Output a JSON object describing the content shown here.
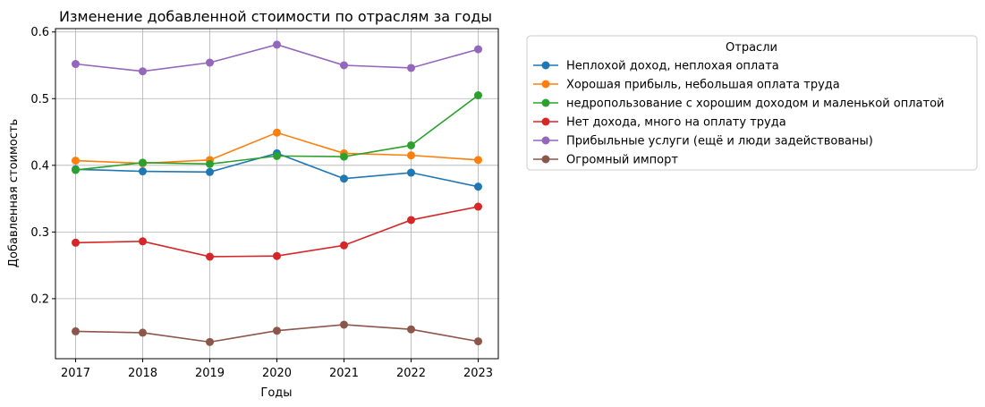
{
  "chart_data": {
    "type": "line",
    "title": "Изменение добавленной стоимости по отраслям за годы",
    "xlabel": "Годы",
    "ylabel": "Добавленная стоимость",
    "x": [
      2017,
      2018,
      2019,
      2020,
      2021,
      2022,
      2023
    ],
    "xlim": [
      2016.7,
      2023.3
    ],
    "ylim": [
      0.11,
      0.605
    ],
    "yticks": [
      0.2,
      0.3,
      0.4,
      0.5,
      0.6
    ],
    "ytick_labels": [
      "0.2",
      "0.3",
      "0.4",
      "0.5",
      "0.6"
    ],
    "xtick_labels": [
      "2017",
      "2018",
      "2019",
      "2020",
      "2021",
      "2022",
      "2023"
    ],
    "grid": true,
    "legend": {
      "title": "Отрасли",
      "placement": "outside-right-top"
    },
    "series": [
      {
        "name": "Неплохой доход, неплохая оплата",
        "color": "#1f77b4",
        "values": [
          0.394,
          0.391,
          0.39,
          0.418,
          0.38,
          0.389,
          0.368
        ]
      },
      {
        "name": "Хорошая прибыль, небольшая оплата труда",
        "color": "#ff7f0e",
        "values": [
          0.407,
          0.403,
          0.408,
          0.449,
          0.418,
          0.415,
          0.408
        ]
      },
      {
        "name": "недропользование с хорошим доходом и маленькой оплатой",
        "color": "#2ca02c",
        "values": [
          0.393,
          0.404,
          0.402,
          0.414,
          0.413,
          0.43,
          0.505
        ]
      },
      {
        "name": "Нет дохода, много на оплату труда",
        "color": "#d62728",
        "values": [
          0.284,
          0.286,
          0.263,
          0.264,
          0.28,
          0.318,
          0.338
        ]
      },
      {
        "name": "Прибыльные услуги (ещё и люди задействованы)",
        "color": "#9467bd",
        "values": [
          0.552,
          0.541,
          0.554,
          0.581,
          0.55,
          0.546,
          0.574
        ]
      },
      {
        "name": "Огромный импорт",
        "color": "#8c564b",
        "values": [
          0.151,
          0.149,
          0.135,
          0.152,
          0.161,
          0.154,
          0.136
        ]
      }
    ]
  }
}
